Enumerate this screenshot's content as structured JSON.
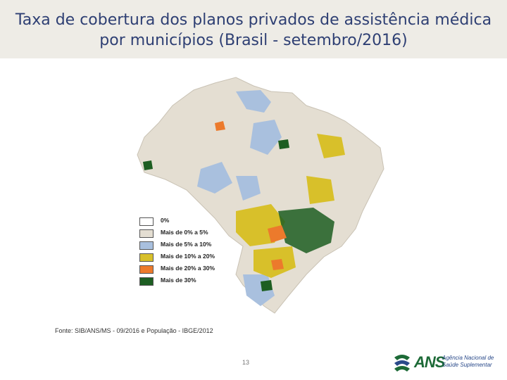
{
  "title": {
    "line1": "Taxa de cobertura dos planos privados de assistência médica",
    "line2": "por municípios (Brasil - setembro/2016)"
  },
  "legend": [
    {
      "label": "0%",
      "color": "#ffffff"
    },
    {
      "label": "Mais de 0% a 5%",
      "color": "#e4ded2"
    },
    {
      "label": "Mais de 5% a 10%",
      "color": "#a9c0de"
    },
    {
      "label": "Mais de 10% a 20%",
      "color": "#d8c02a"
    },
    {
      "label": "Mais de 20% a 30%",
      "color": "#ec7a2c"
    },
    {
      "label": "Mais de 30%",
      "color": "#1d5e22"
    }
  ],
  "source": "Fonte: SIB/ANS/MS - 09/2016 e População - IBGE/2012",
  "page_number": "13",
  "logo": {
    "abbr": "ANS",
    "line1": "Agência Nacional de",
    "line2": "Saúde Suplementar"
  }
}
